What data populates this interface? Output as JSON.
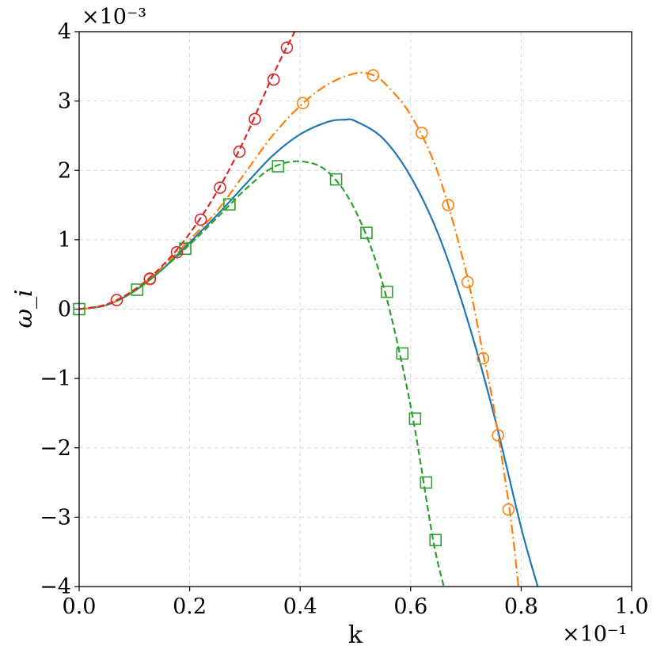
{
  "chart_data": {
    "type": "line",
    "xlabel": "k",
    "ylabel": "ω_i",
    "xlim": [
      0.0,
      1.0
    ],
    "ylim": [
      -4,
      4
    ],
    "x_exponent_label": "×10⁻¹",
    "y_exponent_label": "×10⁻³",
    "x_ticks": [
      "0.0",
      "0.2",
      "0.4",
      "0.6",
      "0.8",
      "1.0"
    ],
    "y_ticks": [
      "−4",
      "−3",
      "−2",
      "−1",
      "0",
      "1",
      "2",
      "3",
      "4"
    ],
    "grid": true,
    "series": [
      {
        "style": "solid",
        "color": "#1f77b4",
        "marker": "none",
        "x": [
          0,
          0.05,
          0.1,
          0.15,
          0.2,
          0.25,
          0.3,
          0.35,
          0.4,
          0.45,
          0.48,
          0.5,
          0.55,
          0.6,
          0.65,
          0.7,
          0.75,
          0.8,
          0.83
        ],
        "y": [
          0,
          0.06,
          0.26,
          0.57,
          0.96,
          1.36,
          1.79,
          2.21,
          2.52,
          2.7,
          2.73,
          2.71,
          2.46,
          1.91,
          1.08,
          -0.08,
          -1.5,
          -3.15,
          -4.0
        ]
      },
      {
        "style": "dashdot",
        "color": "#ff7f0e",
        "marker": "circle",
        "x": [
          0,
          0.05,
          0.1,
          0.15,
          0.2,
          0.25,
          0.3,
          0.35,
          0.4,
          0.45,
          0.5,
          0.53,
          0.55,
          0.6,
          0.65,
          0.7,
          0.73,
          0.75,
          0.78,
          0.795
        ],
        "y": [
          0,
          0.06,
          0.27,
          0.6,
          1.0,
          1.42,
          1.96,
          2.5,
          2.93,
          3.24,
          3.4,
          3.38,
          3.28,
          2.8,
          1.95,
          0.55,
          -0.6,
          -1.4,
          -2.95,
          -4.0
        ],
        "marker_x": [
          0.128,
          0.405,
          0.532,
          0.62,
          0.668,
          0.703,
          0.731,
          0.758,
          0.777
        ],
        "marker_y": [
          0.43,
          2.97,
          3.37,
          2.54,
          1.5,
          0.39,
          -0.71,
          -1.82,
          -2.89
        ]
      },
      {
        "style": "dashed",
        "color": "#2ca02c",
        "marker": "square",
        "x": [
          0,
          0.05,
          0.1,
          0.15,
          0.2,
          0.25,
          0.3,
          0.35,
          0.4,
          0.45,
          0.5,
          0.55,
          0.6,
          0.64,
          0.66
        ],
        "y": [
          0,
          0.06,
          0.26,
          0.57,
          0.93,
          1.32,
          1.72,
          2.04,
          2.13,
          1.98,
          1.42,
          0.35,
          -1.4,
          -3.3,
          -4.0
        ],
        "marker_x": [
          0.0,
          0.105,
          0.192,
          0.272,
          0.36,
          0.465,
          0.52,
          0.557,
          0.585,
          0.608,
          0.628,
          0.645
        ],
        "marker_y": [
          0.0,
          0.28,
          0.87,
          1.51,
          2.06,
          1.87,
          1.1,
          0.25,
          -0.64,
          -1.58,
          -2.5,
          -3.33
        ]
      },
      {
        "style": "dashed",
        "color": "#d62728",
        "marker": "circle",
        "x": [
          0,
          0.05,
          0.1,
          0.15,
          0.2,
          0.25,
          0.3,
          0.35,
          0.39
        ],
        "y": [
          0,
          0.07,
          0.28,
          0.62,
          1.09,
          1.7,
          2.46,
          3.36,
          4.0
        ],
        "marker_x": [
          0.068,
          0.128,
          0.177,
          0.22,
          0.255,
          0.29,
          0.318,
          0.352,
          0.376
        ],
        "marker_y": [
          0.13,
          0.44,
          0.82,
          1.29,
          1.75,
          2.27,
          2.74,
          3.31,
          3.77
        ]
      }
    ]
  }
}
